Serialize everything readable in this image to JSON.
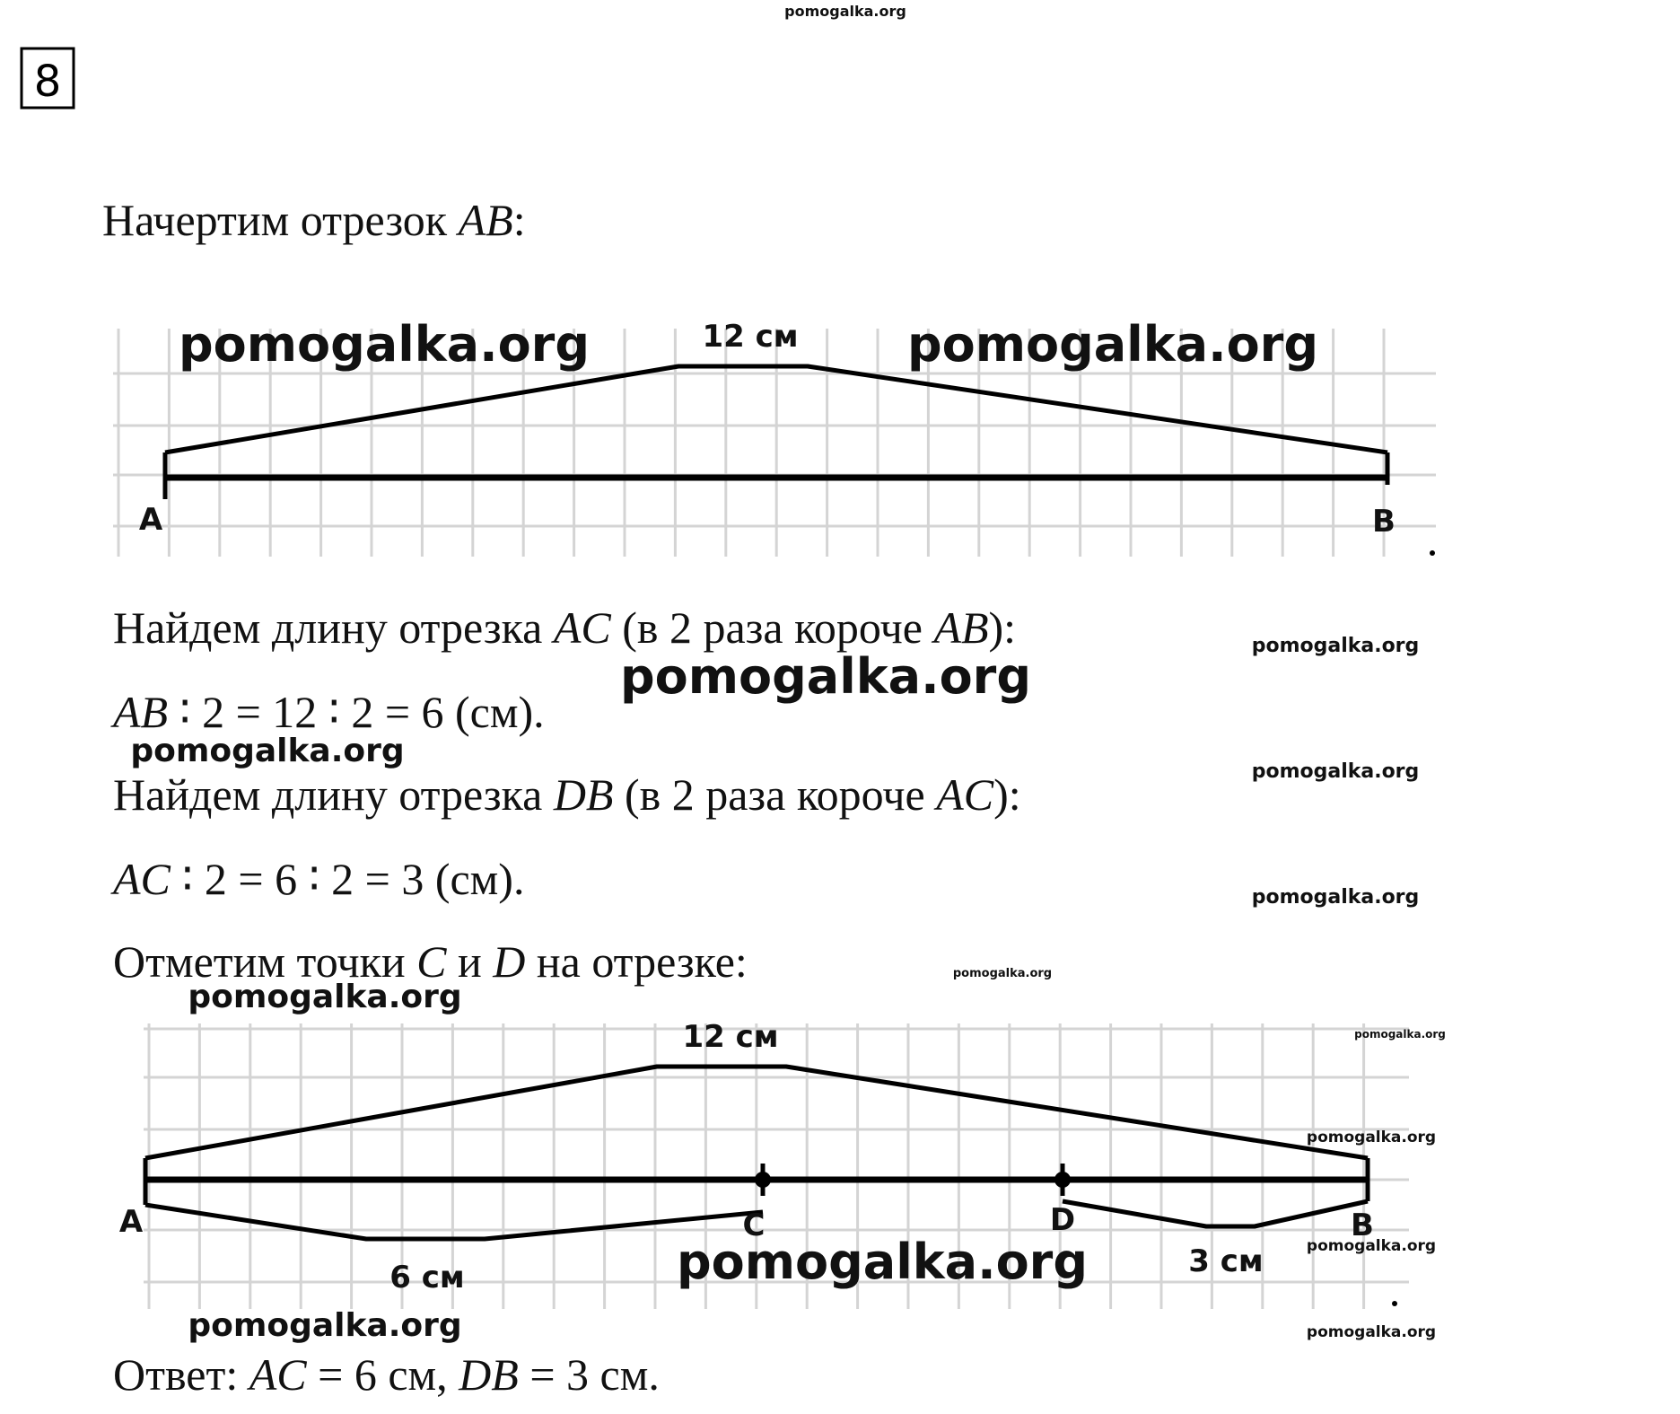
{
  "task_number": "8",
  "lines": [
    [
      "Начертим отрезок ",
      {
        "math": "AB"
      },
      ":"
    ],
    [
      "Найдем длину отрезка ",
      {
        "math": "AC"
      },
      " (в 2 раза короче ",
      {
        "math": "AB"
      },
      "):"
    ],
    [
      {
        "math": "AB"
      },
      " ∶ 2 = 12 ∶ 2 = 6 (см)."
    ],
    [
      "Найдем длину отрезка ",
      {
        "math": "DB"
      },
      " (в 2 раза короче ",
      {
        "math": "AC"
      },
      "):"
    ],
    [
      {
        "math": "AC"
      },
      " ∶ 2 = 6 ∶ 2 = 3 (см)."
    ],
    [
      "Отметим точки ",
      {
        "math": "C"
      },
      " и ",
      {
        "math": "D"
      },
      " на отрезке:"
    ],
    [
      "Ответ: ",
      {
        "math": "AC"
      },
      " = 6 см, ",
      {
        "math": "DB"
      },
      " = 3 см."
    ]
  ],
  "diagram1": {
    "points": [
      "A",
      "B"
    ],
    "length": "12 см"
  },
  "diagram2": {
    "points": [
      "A",
      "C",
      "D",
      "B"
    ],
    "length": "12 см",
    "ac_length": "6 см",
    "db_length": "3 см"
  },
  "watermarks": [
    "pomogalka.org",
    "pomogalka.org",
    "pomogalka.org",
    "pomogalka.org",
    "pomogalka.org",
    "pomogalka.org",
    "pomogalka.org",
    "pomogalka.org",
    "pomogalka.org",
    "pomogalka.org",
    "pomogalka.org",
    "pomogalka.org",
    "pomogalka.org",
    "pomogalka.org",
    "pomogalka.org",
    "pomogalka.org"
  ]
}
